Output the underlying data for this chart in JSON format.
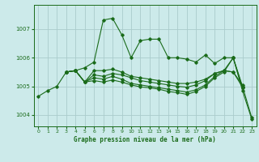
{
  "title": "Graphe pression niveau de la mer (hPa)",
  "background_color": "#cceaea",
  "grid_color": "#aacccc",
  "line_color": "#1a6b1a",
  "xlim": [
    -0.5,
    23.5
  ],
  "ylim": [
    1003.6,
    1007.85
  ],
  "yticks": [
    1004,
    1005,
    1006,
    1007
  ],
  "xticks": [
    0,
    1,
    2,
    3,
    4,
    5,
    6,
    7,
    8,
    9,
    10,
    11,
    12,
    13,
    14,
    15,
    16,
    17,
    18,
    19,
    20,
    21,
    22,
    23
  ],
  "series": [
    [
      1004.65,
      1004.85,
      1005.0,
      1005.5,
      1005.55,
      1005.65,
      1005.85,
      1007.32,
      1007.38,
      1006.8,
      1006.0,
      1006.6,
      1006.65,
      1006.65,
      1006.0,
      1006.0,
      1005.95,
      1005.85,
      1006.1,
      1005.8,
      1006.0,
      1006.0,
      1004.95,
      null
    ],
    [
      null,
      null,
      null,
      1005.5,
      1005.55,
      1005.15,
      1005.55,
      1005.55,
      1005.6,
      1005.5,
      1005.35,
      1005.3,
      1005.25,
      1005.2,
      1005.15,
      1005.1,
      1005.1,
      1005.15,
      1005.25,
      1005.45,
      1005.55,
      1005.5,
      1005.05,
      null
    ],
    [
      null,
      null,
      null,
      1005.5,
      1005.55,
      1005.15,
      1005.4,
      1005.35,
      1005.45,
      1005.4,
      1005.3,
      1005.2,
      1005.15,
      1005.1,
      1005.05,
      1005.0,
      1004.97,
      1005.05,
      1005.2,
      1005.45,
      1005.55,
      1005.5,
      1004.97,
      null
    ],
    [
      null,
      null,
      null,
      1005.5,
      1005.55,
      1005.15,
      1005.3,
      1005.25,
      1005.35,
      1005.25,
      1005.1,
      1005.05,
      1005.0,
      1004.95,
      1004.9,
      1004.85,
      1004.8,
      1004.88,
      1005.05,
      1005.35,
      1005.55,
      1006.0,
      1005.0,
      1003.9
    ],
    [
      null,
      null,
      null,
      1005.5,
      1005.55,
      1005.15,
      1005.2,
      1005.15,
      1005.22,
      1005.15,
      1005.05,
      1004.98,
      1004.95,
      1004.9,
      1004.82,
      1004.78,
      1004.72,
      1004.82,
      1005.0,
      1005.3,
      1005.5,
      1006.0,
      1004.85,
      1003.85
    ]
  ]
}
